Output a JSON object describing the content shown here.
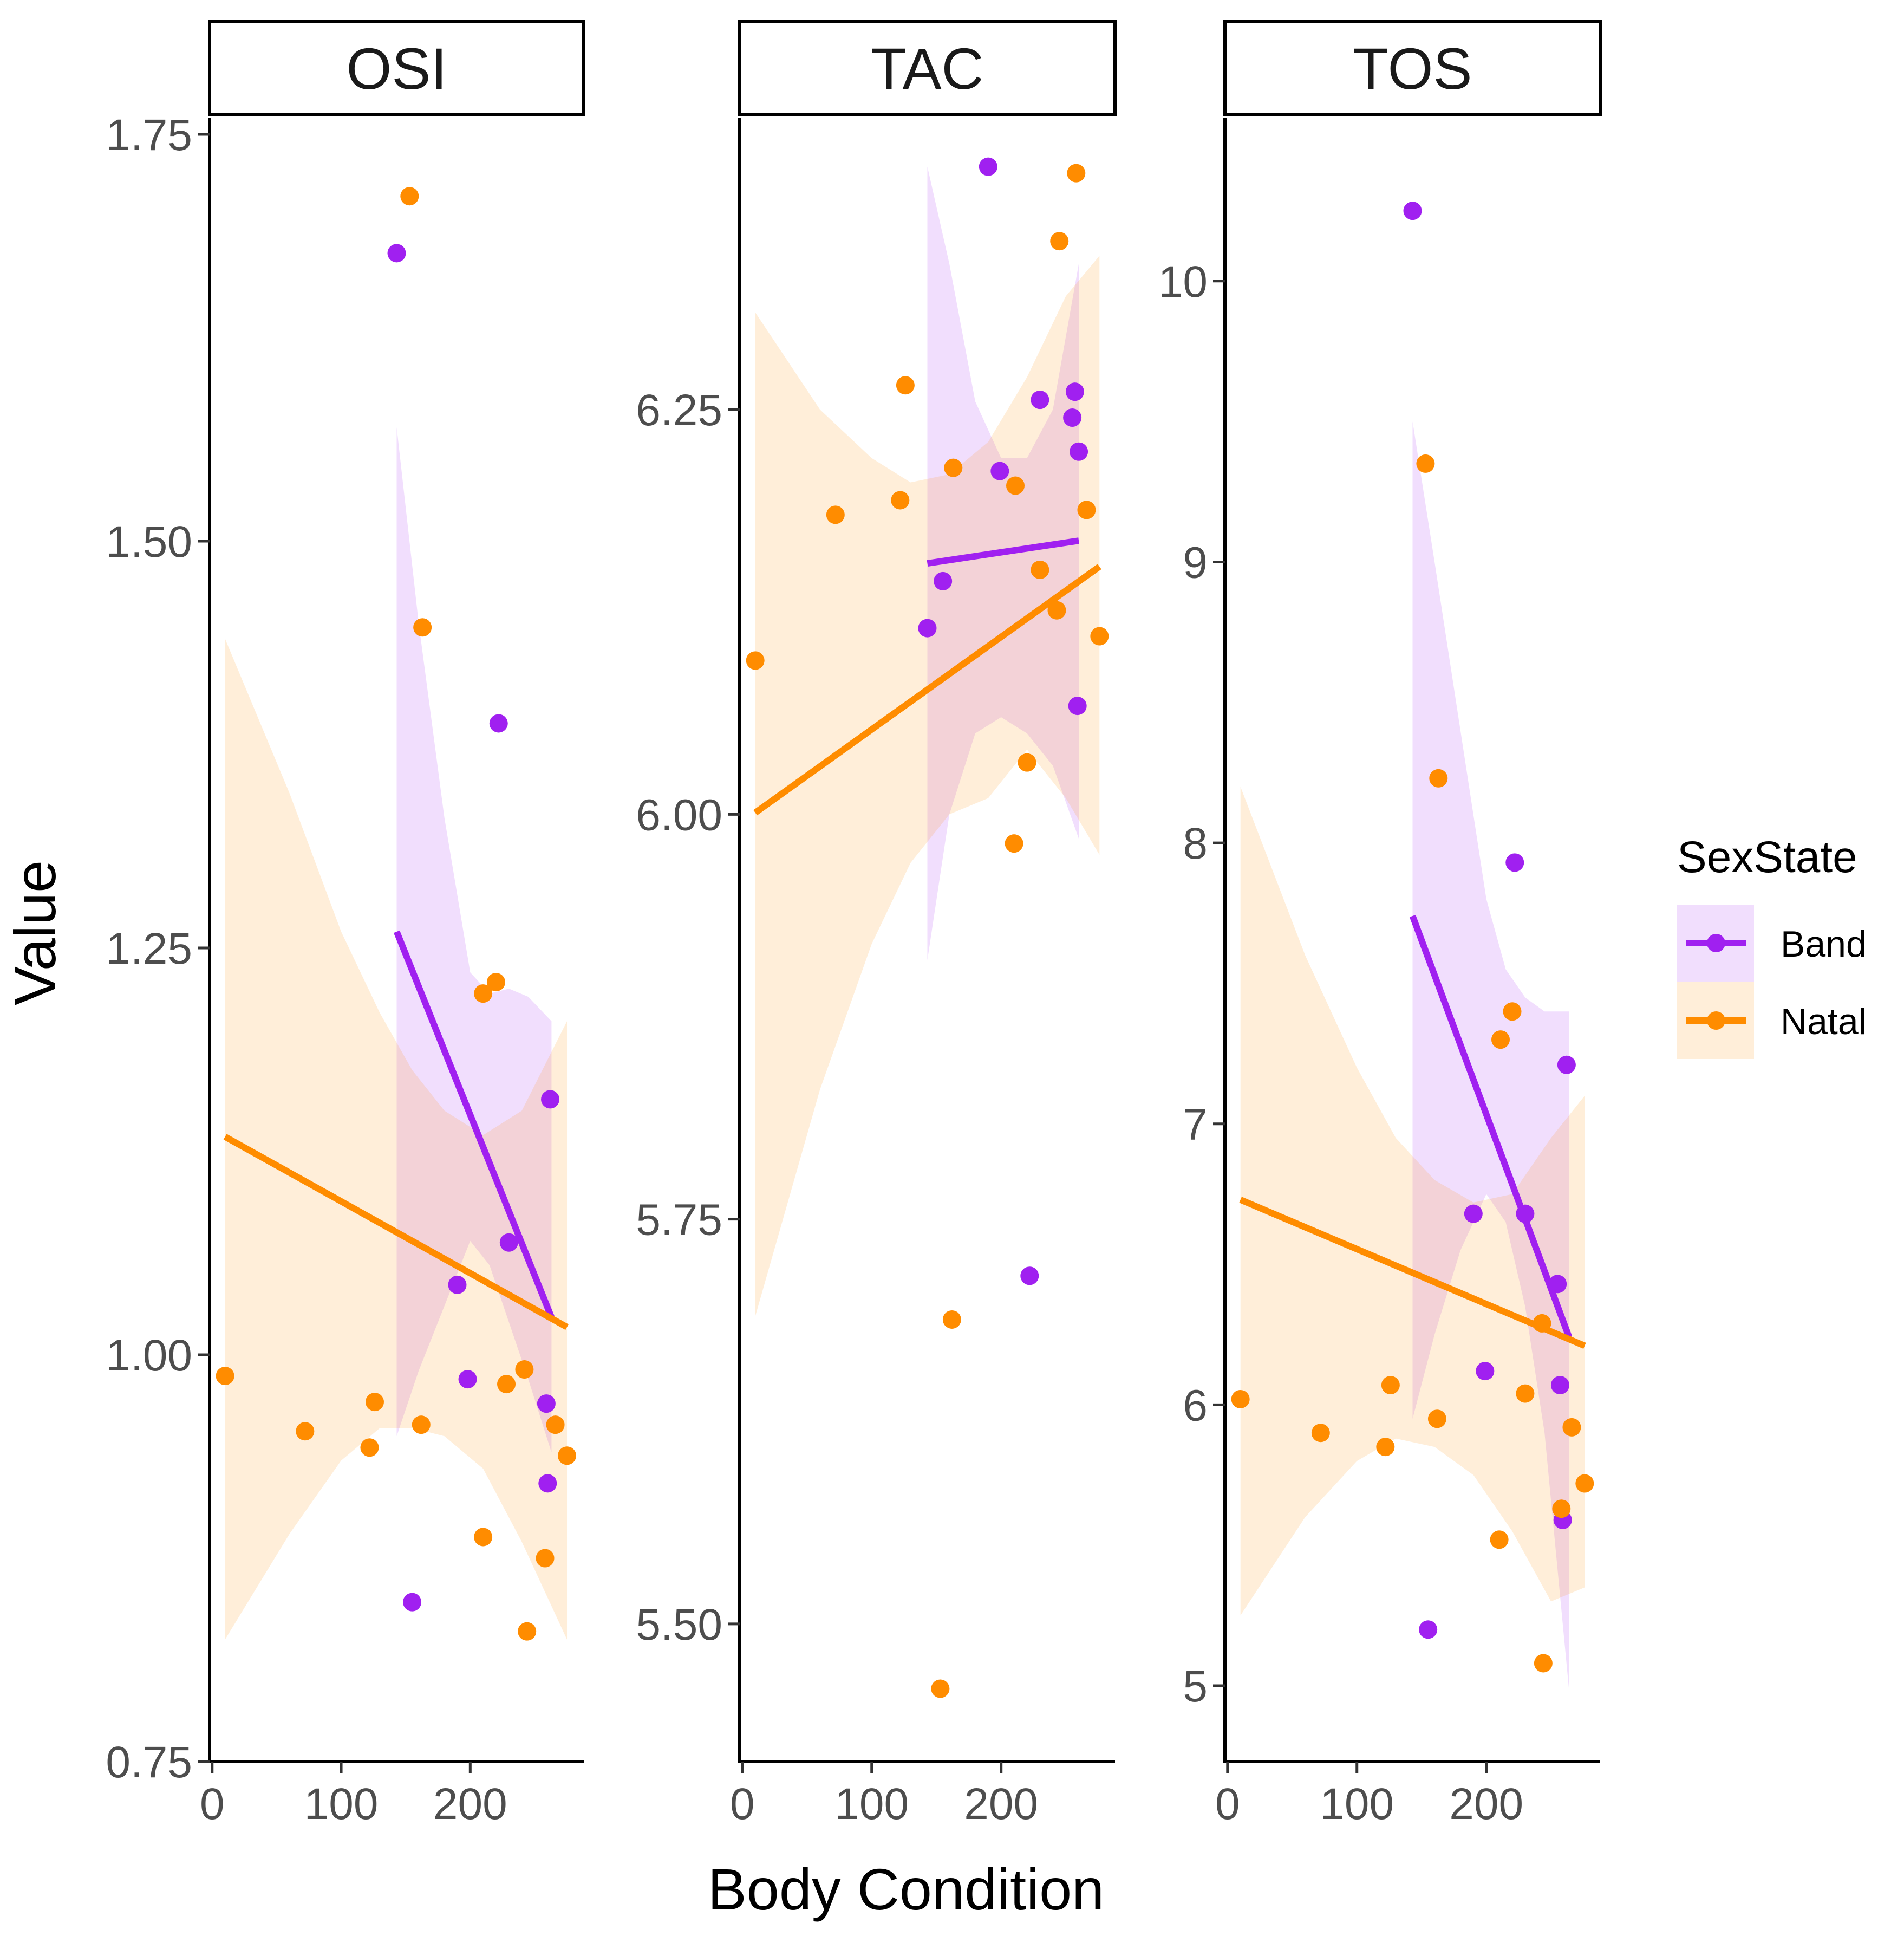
{
  "chart_data": {
    "type": "scatter",
    "xlabel": "Body Condition",
    "ylabel": "Value",
    "legend": {
      "title": "SexState",
      "position": "right",
      "entries": [
        {
          "name": "Band",
          "color": "#A020F0"
        },
        {
          "name": "Natal",
          "color": "#FF8C00"
        }
      ]
    },
    "x_ticks": [
      "0",
      "100",
      "200"
    ],
    "x_tick_values": [
      0,
      100,
      200
    ],
    "xlim": [
      -2,
      288
    ],
    "grid": false,
    "panels": [
      {
        "title": "OSI",
        "ylim": [
          0.75,
          1.76
        ],
        "y_ticks": [
          "0.75",
          "1.00",
          "1.25",
          "1.50",
          "1.75"
        ],
        "y_tick_values": [
          0.75,
          1.0,
          1.25,
          1.5,
          1.75
        ],
        "series": [
          {
            "name": "Band",
            "points": [
              [
                143,
                1.677
              ],
              [
                155,
                0.848
              ],
              [
                190,
                1.043
              ],
              [
                198,
                0.985
              ],
              [
                222,
                1.388
              ],
              [
                230,
                1.069
              ],
              [
                259,
                0.97
              ],
              [
                260,
                0.921
              ],
              [
                262,
                1.157
              ]
            ],
            "fit": [
              [
                143,
                1.26
              ],
              [
                263,
                1.023
              ]
            ],
            "band": [
              [
                143,
                0.95,
                1.57
              ],
              [
                160,
                0.99,
                1.45
              ],
              [
                180,
                1.03,
                1.33
              ],
              [
                200,
                1.07,
                1.235
              ],
              [
                215,
                1.055,
                1.222
              ],
              [
                230,
                1.02,
                1.225
              ],
              [
                245,
                0.985,
                1.22
              ],
              [
                263,
                0.94,
                1.205
              ]
            ]
          },
          {
            "name": "Natal",
            "points": [
              [
                10,
                0.987
              ],
              [
                72,
                0.953
              ],
              [
                122,
                0.943
              ],
              [
                126,
                0.971
              ],
              [
                153,
                1.712
              ],
              [
                162,
                0.957
              ],
              [
                163,
                1.447
              ],
              [
                210,
                1.222
              ],
              [
                210,
                0.888
              ],
              [
                220,
                1.229
              ],
              [
                228,
                0.982
              ],
              [
                242,
                0.991
              ],
              [
                244,
                0.83
              ],
              [
                258,
                0.875
              ],
              [
                266,
                0.957
              ],
              [
                275,
                0.938
              ]
            ],
            "fit": [
              [
                10,
                1.134
              ],
              [
                275,
                1.017
              ]
            ],
            "band": [
              [
                10,
                0.825,
                1.44
              ],
              [
                60,
                0.89,
                1.345
              ],
              [
                100,
                0.935,
                1.26
              ],
              [
                130,
                0.955,
                1.21
              ],
              [
                155,
                0.955,
                1.175
              ],
              [
                180,
                0.95,
                1.15
              ],
              [
                210,
                0.93,
                1.135
              ],
              [
                240,
                0.885,
                1.15
              ],
              [
                275,
                0.825,
                1.205
              ]
            ]
          }
        ]
      },
      {
        "title": "TAC",
        "ylim": [
          5.415,
          6.43
        ],
        "y_ticks": [
          "5.50",
          "5.75",
          "6.00",
          "6.25"
        ],
        "y_tick_values": [
          5.5,
          5.75,
          6.0,
          6.25
        ],
        "series": [
          {
            "name": "Band",
            "points": [
              [
                143,
                6.115
              ],
              [
                155,
                6.144
              ],
              [
                190,
                6.4
              ],
              [
                199,
                6.212
              ],
              [
                222,
                5.715
              ],
              [
                230,
                6.256
              ],
              [
                255,
                6.245
              ],
              [
                257,
                6.261
              ],
              [
                259,
                6.067
              ],
              [
                260,
                6.224
              ]
            ],
            "fit": [
              [
                143,
                6.155
              ],
              [
                260,
                6.169
              ]
            ],
            "band": [
              [
                143,
                5.91,
                6.4
              ],
              [
                160,
                6.0,
                6.34
              ],
              [
                180,
                6.05,
                6.255
              ],
              [
                200,
                6.06,
                6.22
              ],
              [
                220,
                6.05,
                6.22
              ],
              [
                240,
                6.03,
                6.25
              ],
              [
                260,
                5.985,
                6.34
              ]
            ]
          },
          {
            "name": "Natal",
            "points": [
              [
                10,
                6.095
              ],
              [
                72,
                6.185
              ],
              [
                122,
                6.194
              ],
              [
                126,
                6.265
              ],
              [
                153,
                5.46
              ],
              [
                162,
                5.688
              ],
              [
                163,
                6.214
              ],
              [
                210,
                5.982
              ],
              [
                211,
                6.203
              ],
              [
                220,
                6.032
              ],
              [
                230,
                6.151
              ],
              [
                243,
                6.126
              ],
              [
                245,
                6.354
              ],
              [
                258,
                6.396
              ],
              [
                266,
                6.188
              ],
              [
                276,
                6.11
              ]
            ],
            "fit": [
              [
                10,
                6.001
              ],
              [
                276,
                6.153
              ]
            ],
            "band": [
              [
                10,
                5.69,
                6.31
              ],
              [
                60,
                5.83,
                6.25
              ],
              [
                100,
                5.92,
                6.22
              ],
              [
                130,
                5.97,
                6.205
              ],
              [
                160,
                6.0,
                6.21
              ],
              [
                190,
                6.01,
                6.23
              ],
              [
                220,
                6.04,
                6.27
              ],
              [
                250,
                6.01,
                6.32
              ],
              [
                276,
                5.975,
                6.345
              ]
            ]
          }
        ]
      },
      {
        "title": "TOS",
        "ylim": [
          4.73,
          10.58
        ],
        "y_ticks": [
          "5",
          "6",
          "7",
          "8",
          "9",
          "10"
        ],
        "y_tick_values": [
          5,
          6,
          7,
          8,
          9,
          10
        ],
        "series": [
          {
            "name": "Band",
            "points": [
              [
                143,
                10.25
              ],
              [
                155,
                5.2
              ],
              [
                190,
                6.68
              ],
              [
                199,
                6.12
              ],
              [
                222,
                7.93
              ],
              [
                230,
                6.68
              ],
              [
                255,
                6.43
              ],
              [
                257,
                6.07
              ],
              [
                259,
                5.59
              ],
              [
                262,
                7.21
              ]
            ],
            "fit": [
              [
                143,
                7.74
              ],
              [
                264,
                6.24
              ]
            ],
            "band": [
              [
                143,
                5.95,
                9.5
              ],
              [
                160,
                6.25,
                9.0
              ],
              [
                180,
                6.55,
                8.4
              ],
              [
                200,
                6.75,
                7.8
              ],
              [
                215,
                6.65,
                7.55
              ],
              [
                230,
                6.35,
                7.45
              ],
              [
                245,
                5.9,
                7.4
              ],
              [
                264,
                4.98,
                7.4
              ]
            ]
          },
          {
            "name": "Natal",
            "points": [
              [
                10,
                6.02
              ],
              [
                72,
                5.9
              ],
              [
                122,
                5.85
              ],
              [
                126,
                6.07
              ],
              [
                153,
                9.35
              ],
              [
                162,
                5.95
              ],
              [
                163,
                8.23
              ],
              [
                210,
                5.52
              ],
              [
                211,
                7.3
              ],
              [
                220,
                7.4
              ],
              [
                230,
                6.04
              ],
              [
                243,
                6.29
              ],
              [
                244,
                5.08
              ],
              [
                258,
                5.63
              ],
              [
                266,
                5.92
              ],
              [
                276,
                5.72
              ]
            ],
            "fit": [
              [
                10,
                6.73
              ],
              [
                276,
                6.21
              ]
            ],
            "band": [
              [
                10,
                5.25,
                8.2
              ],
              [
                60,
                5.6,
                7.6
              ],
              [
                100,
                5.8,
                7.2
              ],
              [
                130,
                5.88,
                6.95
              ],
              [
                160,
                5.85,
                6.8
              ],
              [
                190,
                5.75,
                6.72
              ],
              [
                220,
                5.55,
                6.75
              ],
              [
                250,
                5.3,
                6.95
              ],
              [
                276,
                5.35,
                7.1
              ]
            ]
          }
        ]
      }
    ]
  }
}
